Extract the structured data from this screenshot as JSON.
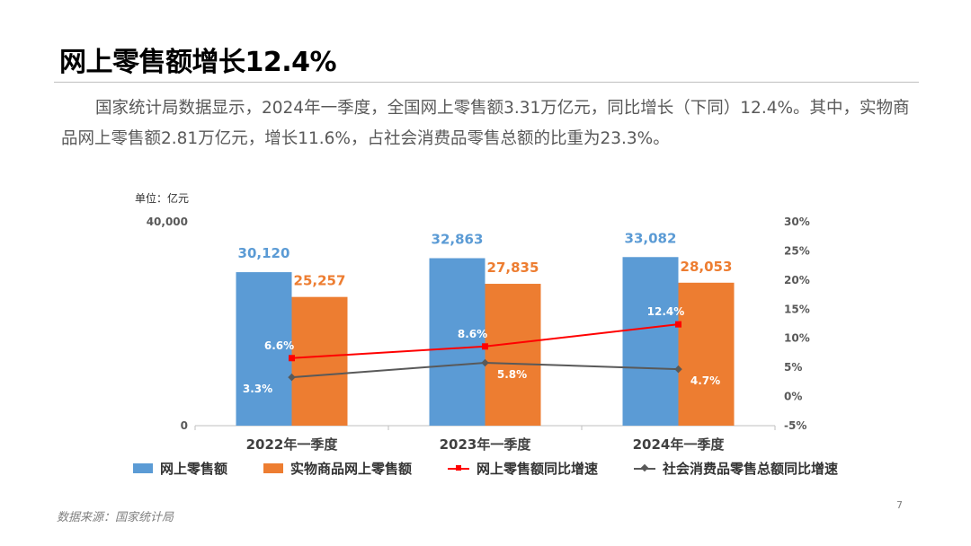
{
  "title": "网上零售额增长12.4%",
  "summary": "国家统计局数据显示，2024年一季度，全国网上零售额3.31万亿元，同比增长（下同）12.4%。其中，实物商品网上零售额2.81万亿元，增长11.6%，占社会消费品零售总额的比重为23.3%。",
  "source_note": "数据来源：国家统计局",
  "page_number": "7",
  "colors": {
    "online_retail": "#5b9bd5",
    "physical_goods": "#ed7d31",
    "online_growth": "#ff0000",
    "social_growth": "#595959"
  },
  "chart_data": {
    "type": "bar",
    "unit_label": "单位：亿元",
    "categories": [
      "2022年一季度",
      "2023年一季度",
      "2024年一季度"
    ],
    "y_left": {
      "ylim": [
        0,
        40000
      ],
      "tick_labels": [
        "0",
        "40,000"
      ]
    },
    "y_right": {
      "ylim": [
        -5,
        30
      ],
      "tick_labels": [
        "-5%",
        "0%",
        "5%",
        "10%",
        "15%",
        "20%",
        "25%",
        "30%"
      ]
    },
    "series": [
      {
        "name": "网上零售额",
        "type": "bar",
        "axis": "left",
        "values": [
          30120,
          32863,
          33082
        ],
        "labels": [
          "30,120",
          "32,863",
          "33,082"
        ]
      },
      {
        "name": "实物商品网上零售额",
        "type": "bar",
        "axis": "left",
        "values": [
          25257,
          27835,
          28053
        ],
        "labels": [
          "25,257",
          "27,835",
          "28,053"
        ]
      },
      {
        "name": "网上零售额同比增速",
        "type": "line",
        "axis": "right",
        "values": [
          6.6,
          8.6,
          12.4
        ],
        "labels": [
          "6.6%",
          "8.6%",
          "12.4%"
        ]
      },
      {
        "name": "社会消费品零售总额同比增速",
        "type": "line",
        "axis": "right",
        "values": [
          3.3,
          5.8,
          4.7
        ],
        "labels": [
          "3.3%",
          "5.8%",
          "4.7%"
        ]
      }
    ],
    "legend_position": "bottom",
    "grid": false
  }
}
